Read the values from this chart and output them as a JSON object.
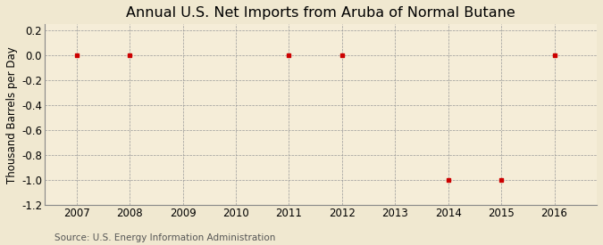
{
  "title": "Annual U.S. Net Imports from Aruba of Normal Butane",
  "ylabel": "Thousand Barrels per Day",
  "source": "Source: U.S. Energy Information Administration",
  "years": [
    2007,
    2008,
    2009,
    2010,
    2011,
    2012,
    2013,
    2014,
    2015,
    2016
  ],
  "values": [
    0,
    0,
    null,
    null,
    0,
    0,
    null,
    -1,
    -1,
    0
  ],
  "xlim": [
    2006.4,
    2016.8
  ],
  "ylim": [
    -1.2,
    0.25
  ],
  "yticks": [
    0.2,
    0.0,
    -0.2,
    -0.4,
    -0.6,
    -0.8,
    -1.0,
    -1.2
  ],
  "xticks": [
    2007,
    2008,
    2009,
    2010,
    2011,
    2012,
    2013,
    2014,
    2015,
    2016
  ],
  "background_color": "#f0e8d0",
  "plot_bg_color": "#f5edd8",
  "marker_color": "#cc0000",
  "grid_color": "#999999",
  "title_fontsize": 11.5,
  "axis_label_fontsize": 8.5,
  "tick_fontsize": 8.5,
  "source_fontsize": 7.5
}
